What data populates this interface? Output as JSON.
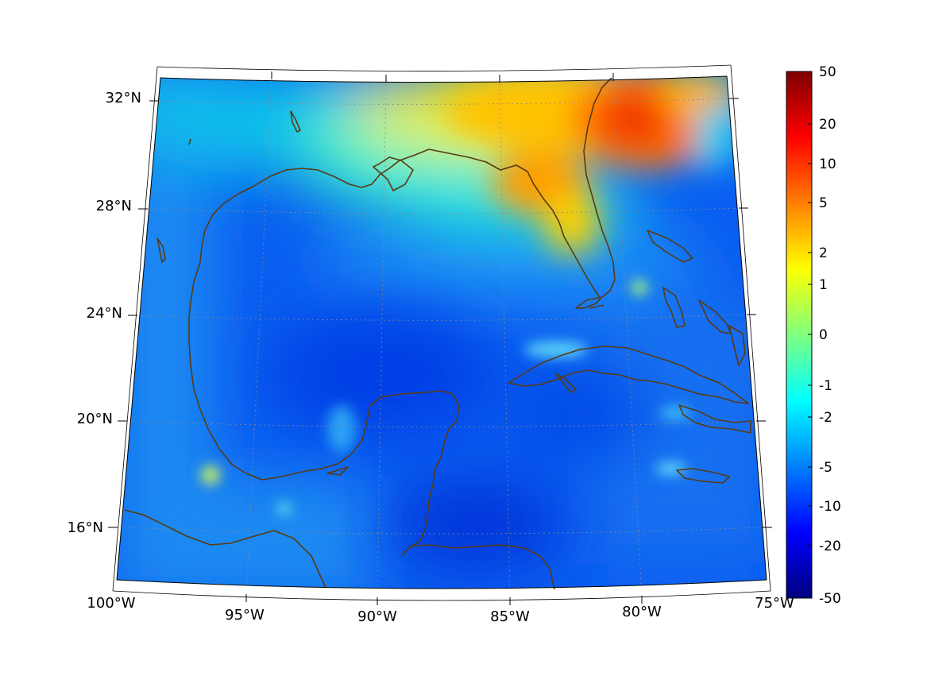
{
  "map": {
    "projection": "lambert-conic",
    "extent": {
      "lon": [
        -100,
        -75
      ],
      "lat": [
        14,
        32.5
      ]
    },
    "coastline_color": "#5a3a10",
    "grid_color": "#8a8a8a",
    "lat_labels": [
      "32°N",
      "28°N",
      "24°N",
      "20°N",
      "16°N"
    ],
    "lon_labels": [
      "100°W",
      "95°W",
      "90°W",
      "85°W",
      "80°W",
      "75°W"
    ]
  },
  "colorbar": {
    "colormap": "jet",
    "tick_labels": [
      "50",
      "20",
      "10",
      "5",
      "2",
      "1",
      "0",
      "-1",
      "-2",
      "-5",
      "-10",
      "-20",
      "-50"
    ]
  }
}
